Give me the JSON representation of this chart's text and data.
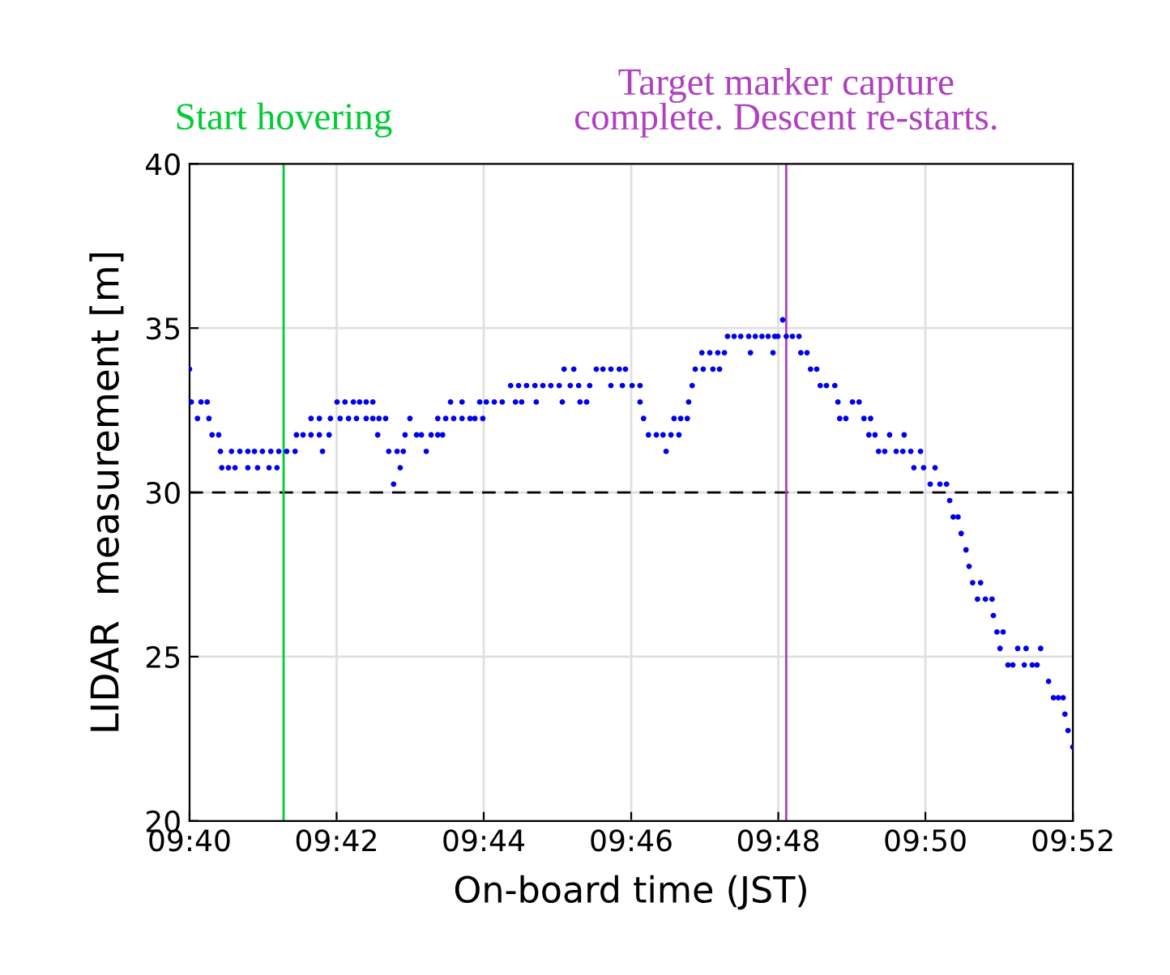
{
  "chart_data": {
    "type": "scatter",
    "xlabel": "On-board time (JST)",
    "ylabel": "LIDAR  measurement [m]",
    "xlim": [
      9.6667,
      9.8667
    ],
    "ylim": [
      20,
      40
    ],
    "xticks": [
      {
        "value": 9.6667,
        "label": "09:40"
      },
      {
        "value": 9.7,
        "label": "09:42"
      },
      {
        "value": 9.7333,
        "label": "09:44"
      },
      {
        "value": 9.7667,
        "label": "09:46"
      },
      {
        "value": 9.8,
        "label": "09:48"
      },
      {
        "value": 9.8333,
        "label": "09:50"
      },
      {
        "value": 9.8667,
        "label": "09:52"
      }
    ],
    "yticks": [
      20,
      25,
      30,
      35,
      40
    ],
    "grid": true,
    "legend": false,
    "marker": "circle",
    "ref_lines": [
      {
        "axis": "y",
        "value": 30,
        "color": "#000000",
        "line_style": "dashed"
      },
      {
        "axis": "x",
        "value": 9.688,
        "label": "Start hovering",
        "color": "#00cc33"
      },
      {
        "axis": "x",
        "value": 9.8018,
        "label": "Target marker capture\ncomplete. Descent re-starts.",
        "color": "#b040c0"
      }
    ],
    "series": [
      {
        "color": "#0000ee",
        "x": [
          9.6667,
          9.6671,
          9.6685,
          9.6693,
          9.6707,
          9.6711,
          9.6718,
          9.6733,
          9.6737,
          9.674,
          9.6755,
          9.677,
          9.6762,
          9.6781,
          9.6799,
          9.6799,
          9.6814,
          9.6821,
          9.6832,
          9.6847,
          9.6851,
          9.6865,
          9.6869,
          9.6887,
          9.6906,
          9.6909,
          9.6924,
          9.6942,
          9.6942,
          9.6961,
          9.6961,
          9.6968,
          9.6983,
          9.6986,
          9.7001,
          9.7008,
          9.7019,
          9.7027,
          9.7038,
          9.7045,
          9.7052,
          9.7067,
          9.7067,
          9.7082,
          9.7082,
          9.7093,
          9.7096,
          9.7111,
          9.7118,
          9.7129,
          9.7137,
          9.7144,
          9.7151,
          9.7155,
          9.7166,
          9.7181,
          9.7192,
          9.7203,
          9.7214,
          9.7229,
          9.7229,
          9.724,
          9.7247,
          9.7258,
          9.7265,
          9.7284,
          9.7284,
          9.7302,
          9.7313,
          9.7324,
          9.7331,
          9.7339,
          9.7357,
          9.7375,
          9.7394,
          9.7405,
          9.7412,
          9.7419,
          9.743,
          9.7449,
          9.7452,
          9.7467,
          9.7485,
          9.7504,
          9.7511,
          9.7515,
          9.7529,
          9.7537,
          9.7548,
          9.7551,
          9.7566,
          9.7573,
          9.7588,
          9.7603,
          9.7621,
          9.7621,
          9.764,
          9.7647,
          9.7654,
          9.7669,
          9.7687,
          9.7687,
          9.7695,
          9.7706,
          9.7724,
          9.7739,
          9.7746,
          9.7757,
          9.7764,
          9.7775,
          9.7779,
          9.7794,
          9.7797,
          9.7805,
          9.7812,
          9.7827,
          9.783,
          9.7845,
          9.7852,
          9.7863,
          9.7867,
          9.7878,
          9.7885,
          9.79,
          9.7915,
          9.7933,
          9.7937,
          9.7948,
          9.7963,
          9.7977,
          9.7988,
          9.7992,
          9.7999,
          9.801,
          9.8018,
          9.8032,
          9.8047,
          9.8051,
          9.8065,
          9.8073,
          9.8087,
          9.8095,
          9.8109,
          9.8128,
          9.8135,
          9.8139,
          9.8153,
          9.8168,
          9.8183,
          9.8194,
          9.8205,
          9.8209,
          9.8219,
          9.8227,
          9.8241,
          9.8252,
          9.8267,
          9.8282,
          9.8285,
          9.83,
          9.8307,
          9.8322,
          9.8329,
          9.8344,
          9.8355,
          9.8366,
          9.8381,
          9.8388,
          9.8396,
          9.8407,
          9.8414,
          9.8425,
          9.8432,
          9.844,
          9.8451,
          9.8458,
          9.8469,
          9.8484,
          9.8487,
          9.8495,
          9.8502,
          9.8509,
          9.852,
          9.8531,
          9.8542,
          9.8557,
          9.8561,
          9.8575,
          9.8586,
          9.8594,
          9.8612,
          9.8623,
          9.8634,
          9.8645,
          9.8649,
          9.8656,
          9.8667
        ],
        "values": [
          33.75,
          32.75,
          32.25,
          32.75,
          32.75,
          32.25,
          31.75,
          31.75,
          31.25,
          30.75,
          30.75,
          30.75,
          31.25,
          31.25,
          31.25,
          30.75,
          31.25,
          30.75,
          31.25,
          30.75,
          31.25,
          30.75,
          31.25,
          31.25,
          31.25,
          31.75,
          31.75,
          32.25,
          31.75,
          32.25,
          31.75,
          31.25,
          31.75,
          32.25,
          32.75,
          32.25,
          32.75,
          32.25,
          32.75,
          32.25,
          32.75,
          32.75,
          32.25,
          32.75,
          32.25,
          31.75,
          32.25,
          32.25,
          31.25,
          30.25,
          31.25,
          30.75,
          31.25,
          31.75,
          32.25,
          31.75,
          31.75,
          31.25,
          31.75,
          31.75,
          32.25,
          31.75,
          32.25,
          32.75,
          32.25,
          32.75,
          32.25,
          32.25,
          32.25,
          32.75,
          32.25,
          32.75,
          32.75,
          32.75,
          33.25,
          32.75,
          33.25,
          32.75,
          33.25,
          33.25,
          32.75,
          33.25,
          33.25,
          33.25,
          32.75,
          33.75,
          33.25,
          33.75,
          33.25,
          32.75,
          32.75,
          33.25,
          33.75,
          33.75,
          33.75,
          33.25,
          33.75,
          33.25,
          33.75,
          33.25,
          33.25,
          32.75,
          32.25,
          31.75,
          31.75,
          31.75,
          31.25,
          31.75,
          32.25,
          31.75,
          32.25,
          32.25,
          32.75,
          33.25,
          33.75,
          34.25,
          33.75,
          34.25,
          33.75,
          34.25,
          33.75,
          34.25,
          34.75,
          34.75,
          34.75,
          34.75,
          34.25,
          34.75,
          34.75,
          34.75,
          34.25,
          34.75,
          34.75,
          35.25,
          34.75,
          34.75,
          34.75,
          34.25,
          34.25,
          33.75,
          33.75,
          33.25,
          33.25,
          33.25,
          32.75,
          32.25,
          32.25,
          32.75,
          32.75,
          32.25,
          31.75,
          32.25,
          31.75,
          31.25,
          31.25,
          31.75,
          31.25,
          31.25,
          31.75,
          31.25,
          30.75,
          31.25,
          30.75,
          30.25,
          30.75,
          30.25,
          30.25,
          29.75,
          29.25,
          29.25,
          28.75,
          28.25,
          27.75,
          27.25,
          26.75,
          27.25,
          26.75,
          26.75,
          26.25,
          25.75,
          25.25,
          25.75,
          24.75,
          24.75,
          25.25,
          24.75,
          25.25,
          24.75,
          24.75,
          25.25,
          24.25,
          23.75,
          23.75,
          23.75,
          23.25,
          22.75,
          22.25
        ]
      }
    ]
  }
}
